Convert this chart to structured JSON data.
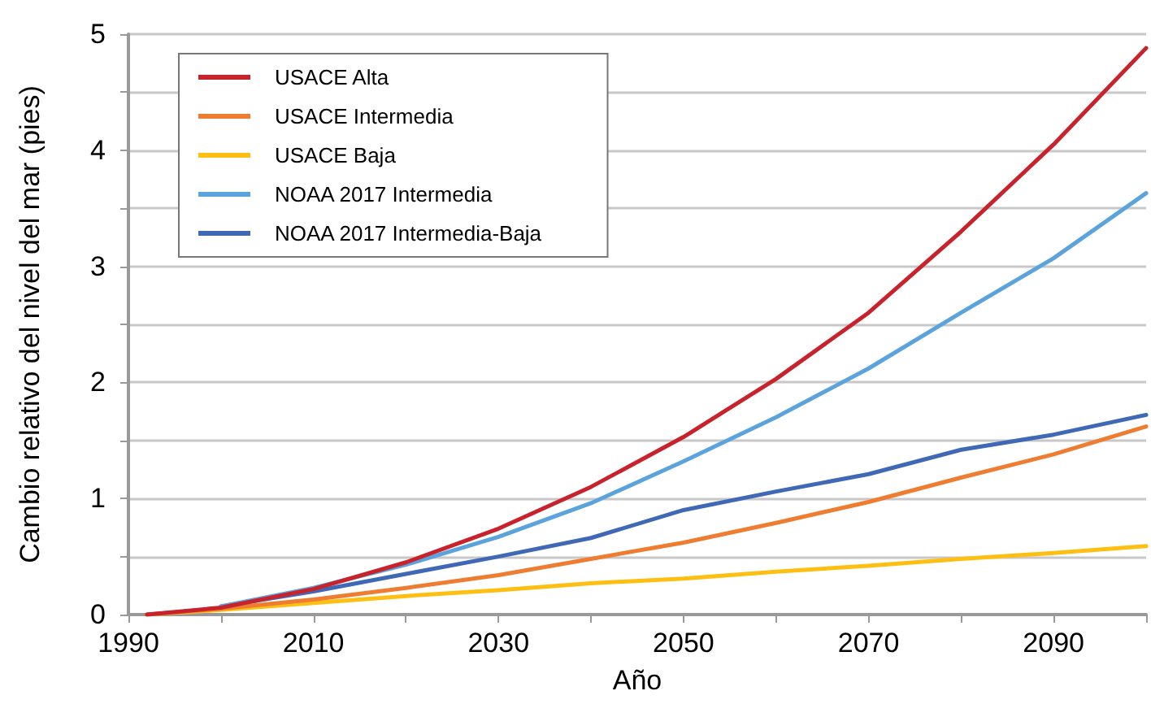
{
  "chart_data": {
    "type": "line",
    "xlabel": "Año",
    "ylabel": "Cambio relativo del nivel del mar (pies)",
    "xlim": [
      1990,
      2100
    ],
    "xticks": [
      1990,
      {
        "value": 2000,
        "label": null
      },
      2010,
      {
        "value": 2020,
        "label": null
      },
      2030,
      {
        "value": 2040,
        "label": null
      },
      2050,
      {
        "value": 2060,
        "label": null
      },
      2070,
      {
        "value": 2080,
        "label": null
      },
      2090,
      {
        "value": 2100,
        "label": null
      }
    ],
    "ylim": [
      0,
      5
    ],
    "yticks": [
      0,
      {
        "value": 0.5,
        "label": null
      },
      1,
      {
        "value": 1.5,
        "label": null
      },
      2,
      {
        "value": 2.5,
        "label": null
      },
      3,
      {
        "value": 3.5,
        "label": null
      },
      4,
      {
        "value": 4.5,
        "label": null
      },
      5
    ],
    "grid": "y",
    "legend": "top left",
    "marker": "none",
    "line_style": "solid",
    "series": [
      {
        "name": "USACE Alta",
        "color": "#c8232c",
        "x": [
          1992,
          2000,
          2010,
          2020,
          2030,
          2040,
          2050,
          2060,
          2070,
          2080,
          2090,
          2100
        ],
        "values": [
          0,
          0.06,
          0.22,
          0.45,
          0.74,
          1.1,
          1.53,
          2.03,
          2.6,
          3.3,
          4.05,
          4.88
        ]
      },
      {
        "name": "USACE Intermedia",
        "color": "#ee7d31",
        "x": [
          1992,
          2000,
          2010,
          2020,
          2030,
          2040,
          2050,
          2060,
          2070,
          2080,
          2090,
          2100
        ],
        "values": [
          0,
          0.05,
          0.13,
          0.23,
          0.34,
          0.48,
          0.62,
          0.79,
          0.97,
          1.18,
          1.38,
          1.62
        ]
      },
      {
        "name": "USACE Baja",
        "color": "#fdbf11",
        "x": [
          1992,
          2000,
          2010,
          2020,
          2030,
          2040,
          2050,
          2060,
          2070,
          2080,
          2090,
          2100
        ],
        "values": [
          0,
          0.04,
          0.1,
          0.16,
          0.21,
          0.27,
          0.31,
          0.37,
          0.42,
          0.48,
          0.53,
          0.59
        ]
      },
      {
        "name": "NOAA 2017 Intermedia",
        "color": "#5ba3dc",
        "x": [
          2000,
          2010,
          2020,
          2030,
          2040,
          2050,
          2060,
          2070,
          2080,
          2090,
          2100
        ],
        "values": [
          0.07,
          0.23,
          0.43,
          0.67,
          0.96,
          1.32,
          1.7,
          2.12,
          2.6,
          3.07,
          3.63
        ]
      },
      {
        "name": "NOAA 2017 Intermedia-Baja",
        "color": "#4069b5",
        "x": [
          2000,
          2010,
          2020,
          2030,
          2040,
          2050,
          2060,
          2070,
          2080,
          2090,
          2100
        ],
        "values": [
          0.07,
          0.2,
          0.35,
          0.5,
          0.66,
          0.9,
          1.06,
          1.21,
          1.42,
          1.55,
          1.72
        ]
      }
    ]
  }
}
